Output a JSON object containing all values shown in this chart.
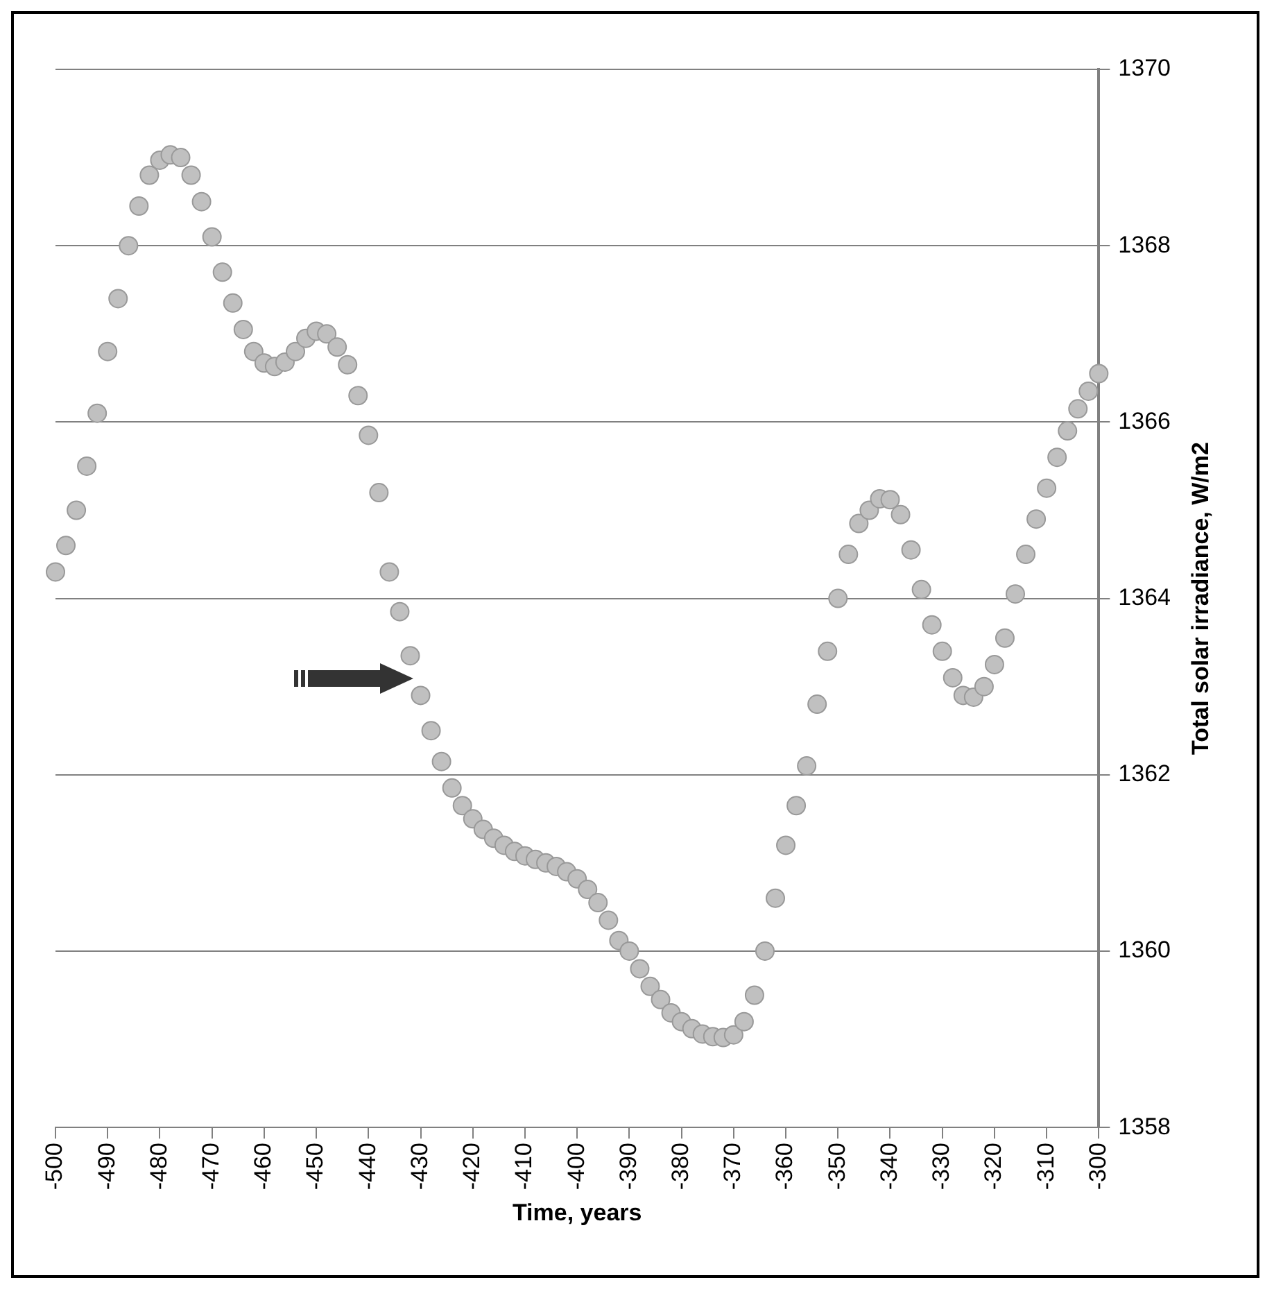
{
  "chart_data": {
    "type": "scatter",
    "xlabel": "Time, years",
    "ylabel": "Total solar irradiance, W/m2",
    "x": [
      -500,
      -498,
      -496,
      -494,
      -492,
      -490,
      -488,
      -486,
      -484,
      -482,
      -480,
      -478,
      -476,
      -474,
      -472,
      -470,
      -468,
      -466,
      -464,
      -462,
      -460,
      -458,
      -456,
      -454,
      -452,
      -450,
      -448,
      -446,
      -444,
      -442,
      -440,
      -438,
      -436,
      -434,
      -432,
      -430,
      -428,
      -426,
      -424,
      -422,
      -420,
      -418,
      -416,
      -414,
      -412,
      -410,
      -408,
      -406,
      -404,
      -402,
      -400,
      -398,
      -396,
      -394,
      -392,
      -390,
      -388,
      -386,
      -384,
      -382,
      -380,
      -378,
      -376,
      -374,
      -372,
      -370,
      -368,
      -366,
      -364,
      -362,
      -360,
      -358,
      -356,
      -354,
      -352,
      -350,
      -348,
      -346,
      -344,
      -342,
      -340,
      -338,
      -336,
      -334,
      -332,
      -330,
      -328,
      -326,
      -324,
      -322,
      -320,
      -318,
      -316,
      -314,
      -312,
      -310,
      -308,
      -306,
      -304,
      -302,
      -300
    ],
    "series": [
      {
        "color": "#c0c0c0",
        "values": [
          1364.3,
          1364.6,
          1365.0,
          1365.5,
          1366.1,
          1366.8,
          1367.4,
          1368.0,
          1368.45,
          1368.8,
          1368.97,
          1369.03,
          1369.0,
          1368.8,
          1368.5,
          1368.1,
          1367.7,
          1367.35,
          1367.05,
          1366.8,
          1366.67,
          1366.63,
          1366.68,
          1366.8,
          1366.95,
          1367.03,
          1367.0,
          1366.85,
          1366.65,
          1366.3,
          1365.85,
          1365.2,
          1364.3,
          1363.85,
          1363.35,
          1362.9,
          1362.5,
          1362.15,
          1361.85,
          1361.65,
          1361.5,
          1361.38,
          1361.28,
          1361.2,
          1361.13,
          1361.08,
          1361.04,
          1361.0,
          1360.96,
          1360.9,
          1360.82,
          1360.7,
          1360.55,
          1360.35,
          1360.12,
          1360.0,
          1359.8,
          1359.6,
          1359.45,
          1359.3,
          1359.2,
          1359.12,
          1359.06,
          1359.03,
          1359.02,
          1359.05,
          1359.2,
          1359.5,
          1360.0,
          1360.6,
          1361.2,
          1361.65,
          1362.1,
          1362.8,
          1363.4,
          1364.0,
          1364.5,
          1364.85,
          1365.0,
          1365.13,
          1365.12,
          1364.95,
          1364.55,
          1364.1,
          1363.7,
          1363.4,
          1363.1,
          1362.9,
          1362.88,
          1363.0,
          1363.25,
          1363.55,
          1364.05,
          1364.5,
          1364.9,
          1365.25,
          1365.6,
          1365.9,
          1366.15,
          1366.35,
          1366.55
        ]
      }
    ],
    "xlim": [
      -500,
      -300
    ],
    "xticks": [
      -500,
      -490,
      -480,
      -470,
      -460,
      -450,
      -440,
      -430,
      -420,
      -410,
      -400,
      -390,
      -380,
      -370,
      -360,
      -350,
      -340,
      -330,
      -320,
      -310,
      -300
    ],
    "ylim": [
      1358,
      1370
    ],
    "yticks": [
      1358,
      1360,
      1362,
      1364,
      1366,
      1368,
      1370
    ],
    "grid": "y",
    "marker": "circle"
  }
}
